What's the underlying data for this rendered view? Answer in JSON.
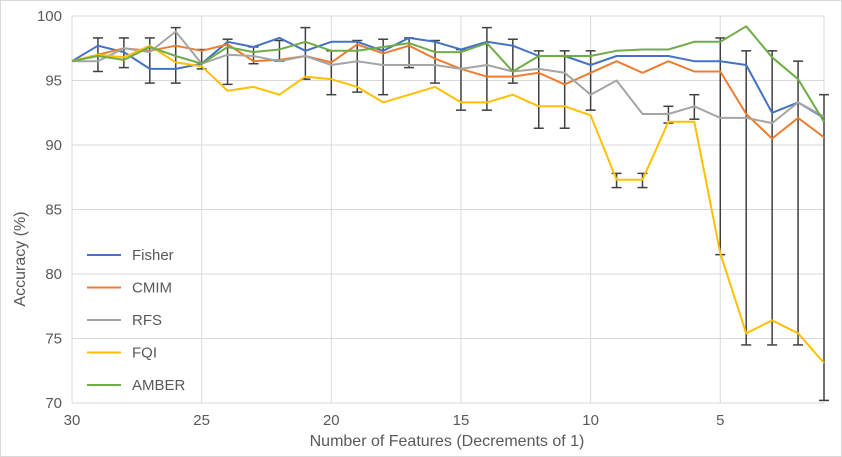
{
  "chart_data": {
    "type": "line",
    "title": "",
    "xlabel": "Number of Features (Decrements of 1)",
    "ylabel": "Accuracy (%)",
    "xlim": [
      30,
      1
    ],
    "ylim": [
      70,
      100
    ],
    "x_reversed": true,
    "xticks": [
      30,
      25,
      20,
      15,
      10,
      5
    ],
    "yticks": [
      70,
      75,
      80,
      85,
      90,
      95,
      100
    ],
    "grid": true,
    "legend": "left",
    "x": [
      30,
      29,
      28,
      27,
      26,
      25,
      24,
      23,
      22,
      21,
      20,
      19,
      18,
      17,
      16,
      15,
      14,
      13,
      12,
      11,
      10,
      9,
      8,
      7,
      6,
      5,
      4,
      3,
      2,
      1
    ],
    "series": [
      {
        "name": "Fisher",
        "color": "#4472C4",
        "values": [
          96.5,
          97.7,
          97.2,
          95.9,
          95.9,
          96.3,
          98.0,
          97.6,
          98.3,
          97.3,
          98.0,
          98.0,
          97.3,
          98.3,
          98.0,
          97.4,
          98.0,
          97.7,
          96.9,
          96.9,
          96.2,
          96.9,
          96.9,
          96.9,
          96.5,
          96.5,
          96.2,
          92.5,
          93.3,
          92.1
        ]
      },
      {
        "name": "CMIM",
        "color": "#ED7D31",
        "values": [
          96.5,
          97.0,
          97.5,
          97.3,
          97.7,
          97.3,
          97.8,
          96.5,
          96.6,
          96.9,
          96.4,
          97.8,
          97.1,
          97.7,
          96.7,
          95.9,
          95.3,
          95.3,
          95.6,
          94.7,
          95.6,
          96.5,
          95.6,
          96.5,
          95.7,
          95.7,
          92.4,
          90.5,
          92.1,
          90.6
        ]
      },
      {
        "name": "RFS",
        "color": "#A5A5A5",
        "values": [
          96.5,
          96.5,
          97.5,
          97.2,
          98.8,
          96.3,
          97.0,
          96.9,
          96.5,
          96.9,
          96.2,
          96.5,
          96.2,
          96.2,
          96.2,
          95.9,
          96.2,
          95.7,
          95.9,
          95.6,
          93.9,
          95.0,
          92.4,
          92.4,
          93.0,
          92.1,
          92.1,
          91.7,
          93.3,
          92.2
        ]
      },
      {
        "name": "FQI",
        "color": "#FFC000",
        "values": [
          96.5,
          97.0,
          96.8,
          97.7,
          96.4,
          96.1,
          94.2,
          94.5,
          93.9,
          95.3,
          95.1,
          94.5,
          93.3,
          93.9,
          94.5,
          93.3,
          93.3,
          93.9,
          93.0,
          93.0,
          92.3,
          87.3,
          87.3,
          91.8,
          91.8,
          81.6,
          75.4,
          76.4,
          75.4,
          73.1
        ]
      },
      {
        "name": "AMBER",
        "color": "#70AD47",
        "values": [
          96.5,
          96.9,
          96.6,
          97.6,
          96.9,
          96.3,
          97.6,
          97.2,
          97.4,
          98.0,
          97.3,
          97.3,
          97.6,
          97.9,
          97.2,
          97.2,
          97.9,
          95.7,
          96.9,
          96.9,
          96.9,
          97.3,
          97.4,
          97.4,
          98.0,
          98.0,
          99.2,
          96.8,
          95.1,
          91.8
        ]
      }
    ],
    "error_bars": {
      "color": "#404040",
      "points": [
        {
          "x": 29,
          "y": 97.0,
          "low": 95.7,
          "high": 98.3
        },
        {
          "x": 28,
          "y": 97.2,
          "low": 96.0,
          "high": 98.3
        },
        {
          "x": 27,
          "y": 97.2,
          "low": 94.8,
          "high": 98.3
        },
        {
          "x": 26,
          "y": 96.9,
          "low": 94.8,
          "high": 99.1
        },
        {
          "x": 25,
          "y": 96.3,
          "low": 95.9,
          "high": 97.4
        },
        {
          "x": 24,
          "y": 97.3,
          "low": 94.7,
          "high": 98.2
        },
        {
          "x": 23,
          "y": 97.0,
          "low": 96.3,
          "high": 97.6
        },
        {
          "x": 22,
          "y": 96.9,
          "low": 96.5,
          "high": 98.1
        },
        {
          "x": 21,
          "y": 97.3,
          "low": 95.1,
          "high": 99.1
        },
        {
          "x": 20,
          "y": 96.3,
          "low": 93.9,
          "high": 97.3
        },
        {
          "x": 19,
          "y": 96.5,
          "low": 94.1,
          "high": 98.1
        },
        {
          "x": 18,
          "y": 96.9,
          "low": 93.9,
          "high": 98.2
        },
        {
          "x": 17,
          "y": 97.3,
          "low": 96.0,
          "high": 98.3
        },
        {
          "x": 16,
          "y": 96.6,
          "low": 94.8,
          "high": 98.1
        },
        {
          "x": 15,
          "y": 95.9,
          "low": 92.7,
          "high": 97.4
        },
        {
          "x": 14,
          "y": 96.0,
          "low": 92.7,
          "high": 99.1
        },
        {
          "x": 13,
          "y": 96.0,
          "low": 94.8,
          "high": 98.2
        },
        {
          "x": 12,
          "y": 95.1,
          "low": 91.3,
          "high": 97.3
        },
        {
          "x": 11,
          "y": 95.0,
          "low": 91.3,
          "high": 97.3
        },
        {
          "x": 10,
          "y": 95.0,
          "low": 92.7,
          "high": 97.3
        },
        {
          "x": 9,
          "y": 88.0,
          "low": 86.7,
          "high": 87.8
        },
        {
          "x": 8,
          "y": 88.0,
          "low": 86.7,
          "high": 87.8
        },
        {
          "x": 7,
          "y": 92.0,
          "low": 91.7,
          "high": 93.0
        },
        {
          "x": 6,
          "y": 93.0,
          "low": 92.0,
          "high": 93.9
        },
        {
          "x": 5,
          "y": 95.0,
          "low": 81.5,
          "high": 98.3
        },
        {
          "x": 4,
          "y": 92.0,
          "low": 74.5,
          "high": 97.3
        },
        {
          "x": 3,
          "y": 92.0,
          "low": 74.5,
          "high": 97.3
        },
        {
          "x": 2,
          "y": 93.0,
          "low": 74.5,
          "high": 96.5
        },
        {
          "x": 1,
          "y": 92.0,
          "low": 70.2,
          "high": 93.9
        }
      ]
    }
  }
}
